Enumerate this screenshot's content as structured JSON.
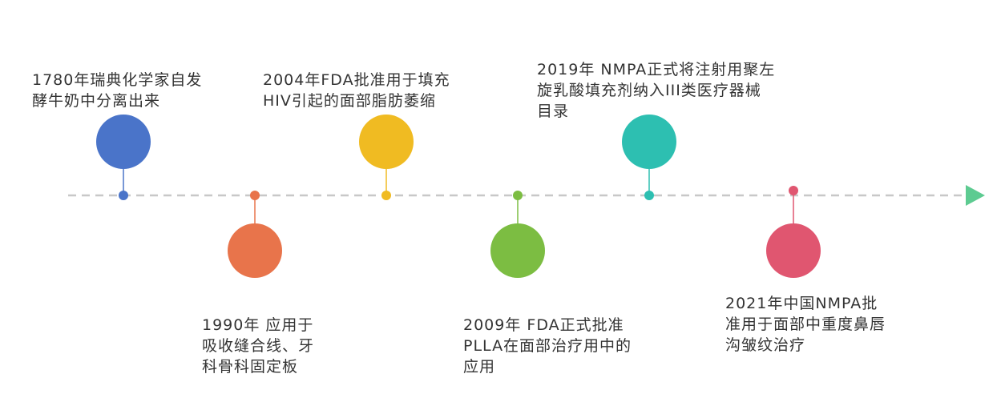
{
  "timeline": {
    "axis_color": "#C8C8C8",
    "arrow_color": "#5DCB91",
    "events": [
      {
        "id": "e1780",
        "color": "#4A74C9",
        "above": true,
        "lines": [
          "1780年瑞典化学家自发",
          "酵牛奶中分离出来"
        ]
      },
      {
        "id": "e1990",
        "color": "#E8744B",
        "above": false,
        "lines": [
          "1990年 应用于",
          "吸收缝合线、牙",
          "科骨科固定板"
        ]
      },
      {
        "id": "e2004",
        "color": "#F0BB22",
        "above": true,
        "lines": [
          "2004年FDA批准用于填充",
          "HIV引起的面部脂肪萎缩"
        ]
      },
      {
        "id": "e2009",
        "color": "#7CBD42",
        "above": false,
        "lines": [
          "2009年 FDA正式批准",
          "PLLA在面部治疗用中的",
          "应用"
        ]
      },
      {
        "id": "e2019",
        "color": "#2DBFB1",
        "above": true,
        "lines": [
          "2019年 NMPA正式将注射用聚左",
          "旋乳酸填充剂纳入III类医疗器械",
          "目录"
        ]
      },
      {
        "id": "e2021",
        "color": "#E05670",
        "above": false,
        "lines": [
          "2021年中国NMPA批",
          "准用于面部中重度鼻唇",
          "沟皱纹治疗"
        ]
      }
    ]
  }
}
